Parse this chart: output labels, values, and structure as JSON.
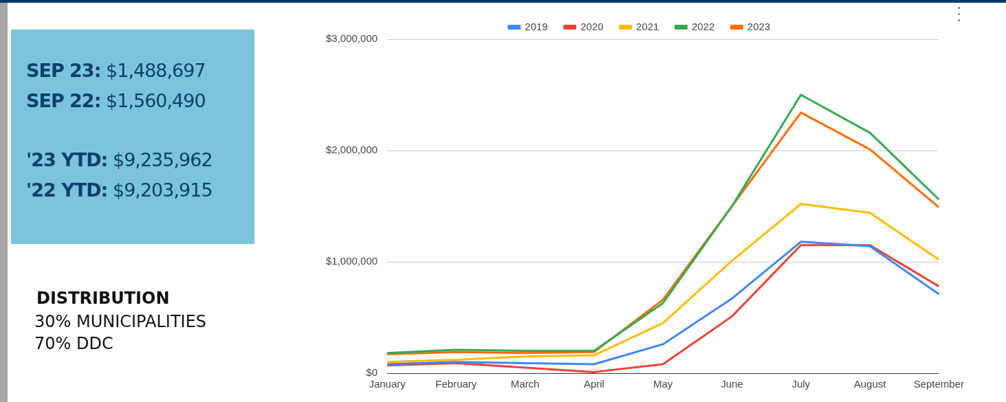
{
  "chart_data": [
    {
      "type": "other",
      "annotations": [
        "SEP 23: $1,488,697",
        "SEP 22: $1,560,490",
        "'23 YTD: $9,235,962",
        "'22 YTD: $9,203,915"
      ]
    },
    {
      "type": "other",
      "title": "DISTRIBUTION",
      "annotations": [
        "30% MUNICIPALITIES",
        "70% DDC"
      ]
    },
    {
      "type": "line",
      "categories": [
        "January",
        "February",
        "March",
        "April",
        "May",
        "June",
        "July",
        "August",
        "September"
      ],
      "series": [
        {
          "name": "2019",
          "color": "#4285f4",
          "values": [
            80000,
            100000,
            90000,
            80000,
            260000,
            670000,
            1180000,
            1140000,
            710000
          ]
        },
        {
          "name": "2020",
          "color": "#ea4335",
          "values": [
            70000,
            90000,
            50000,
            10000,
            80000,
            510000,
            1150000,
            1150000,
            780000
          ]
        },
        {
          "name": "2021",
          "color": "#fbbc04",
          "values": [
            100000,
            120000,
            150000,
            160000,
            450000,
            1010000,
            1520000,
            1440000,
            1020000
          ]
        },
        {
          "name": "2022",
          "color": "#34a853",
          "values": [
            180000,
            210000,
            200000,
            200000,
            630000,
            1500000,
            2500000,
            2160000,
            1560000
          ]
        },
        {
          "name": "2023",
          "color": "#ff6d01",
          "values": [
            170000,
            190000,
            180000,
            190000,
            660000,
            1500000,
            2340000,
            2010000,
            1490000
          ]
        }
      ],
      "ylim": [
        0,
        3000000
      ],
      "yticks": [
        {
          "value": 0,
          "label": "$0"
        },
        {
          "value": 1000000,
          "label": "$1,000,000"
        },
        {
          "value": 2000000,
          "label": "$2,000,000"
        },
        {
          "value": 3000000,
          "label": "$3,000,000"
        }
      ],
      "grid": "y",
      "legend": "top",
      "marker": "none"
    }
  ]
}
